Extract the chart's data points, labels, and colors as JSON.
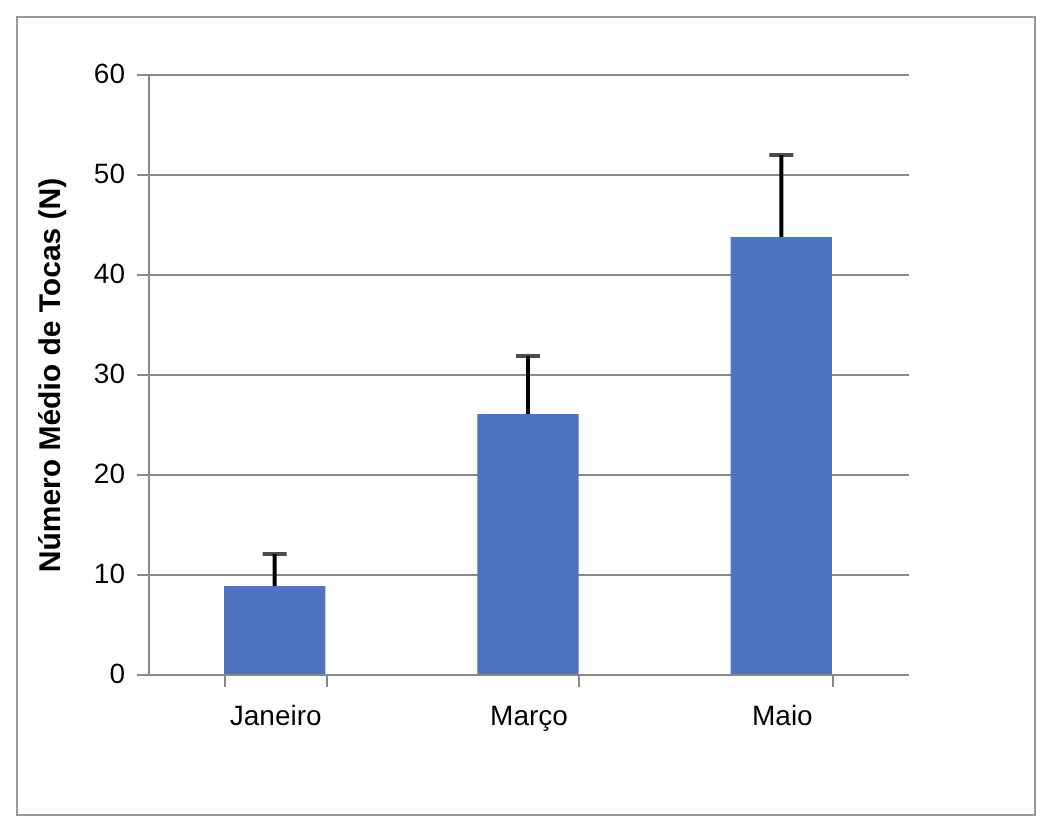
{
  "chart_data": {
    "type": "bar",
    "ylabel": "Número Médio de Tocas (N)",
    "categories": [
      "Janeiro",
      "Março",
      "Maio"
    ],
    "values": [
      8.8,
      26.0,
      43.7
    ],
    "errors": [
      [
        8.8,
        12.0
      ],
      [
        26.0,
        31.8
      ],
      [
        43.7,
        51.9
      ]
    ],
    "color": "#4f74bf",
    "ylim": [
      0,
      60
    ],
    "yticks": [
      0,
      10,
      20,
      30,
      40,
      50,
      60
    ],
    "grid": "y"
  }
}
